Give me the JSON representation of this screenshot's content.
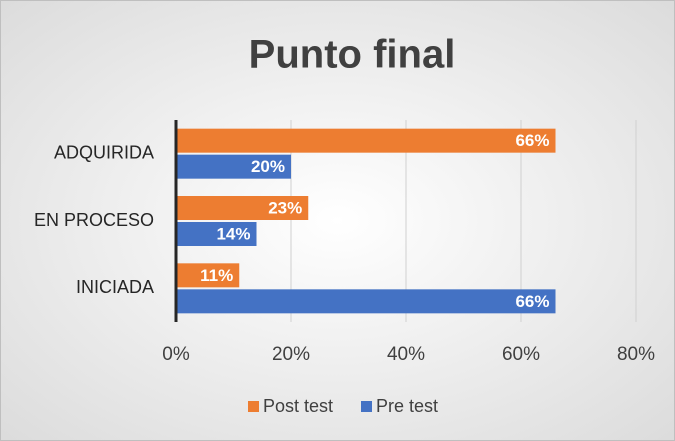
{
  "chart_data": {
    "type": "bar",
    "orientation": "horizontal",
    "title": "Punto final",
    "categories": [
      "ADQUIRIDA",
      "EN PROCESO",
      "INICIADA"
    ],
    "series": [
      {
        "name": "Post test",
        "color": "#ed7d31",
        "values": [
          66,
          23,
          11
        ],
        "value_labels": [
          "66%",
          "23%",
          "11%"
        ]
      },
      {
        "name": "Pre test",
        "color": "#4472c4",
        "values": [
          20,
          14,
          66
        ],
        "value_labels": [
          "20%",
          "14%",
          "66%"
        ]
      }
    ],
    "xlim": [
      0,
      80
    ],
    "xticks": [
      {
        "value": 0,
        "label": "0%"
      },
      {
        "value": 20,
        "label": "20%"
      },
      {
        "value": 40,
        "label": "40%"
      },
      {
        "value": 60,
        "label": "60%"
      },
      {
        "value": 80,
        "label": "80%"
      }
    ],
    "grid": true,
    "legend": "bottom"
  }
}
